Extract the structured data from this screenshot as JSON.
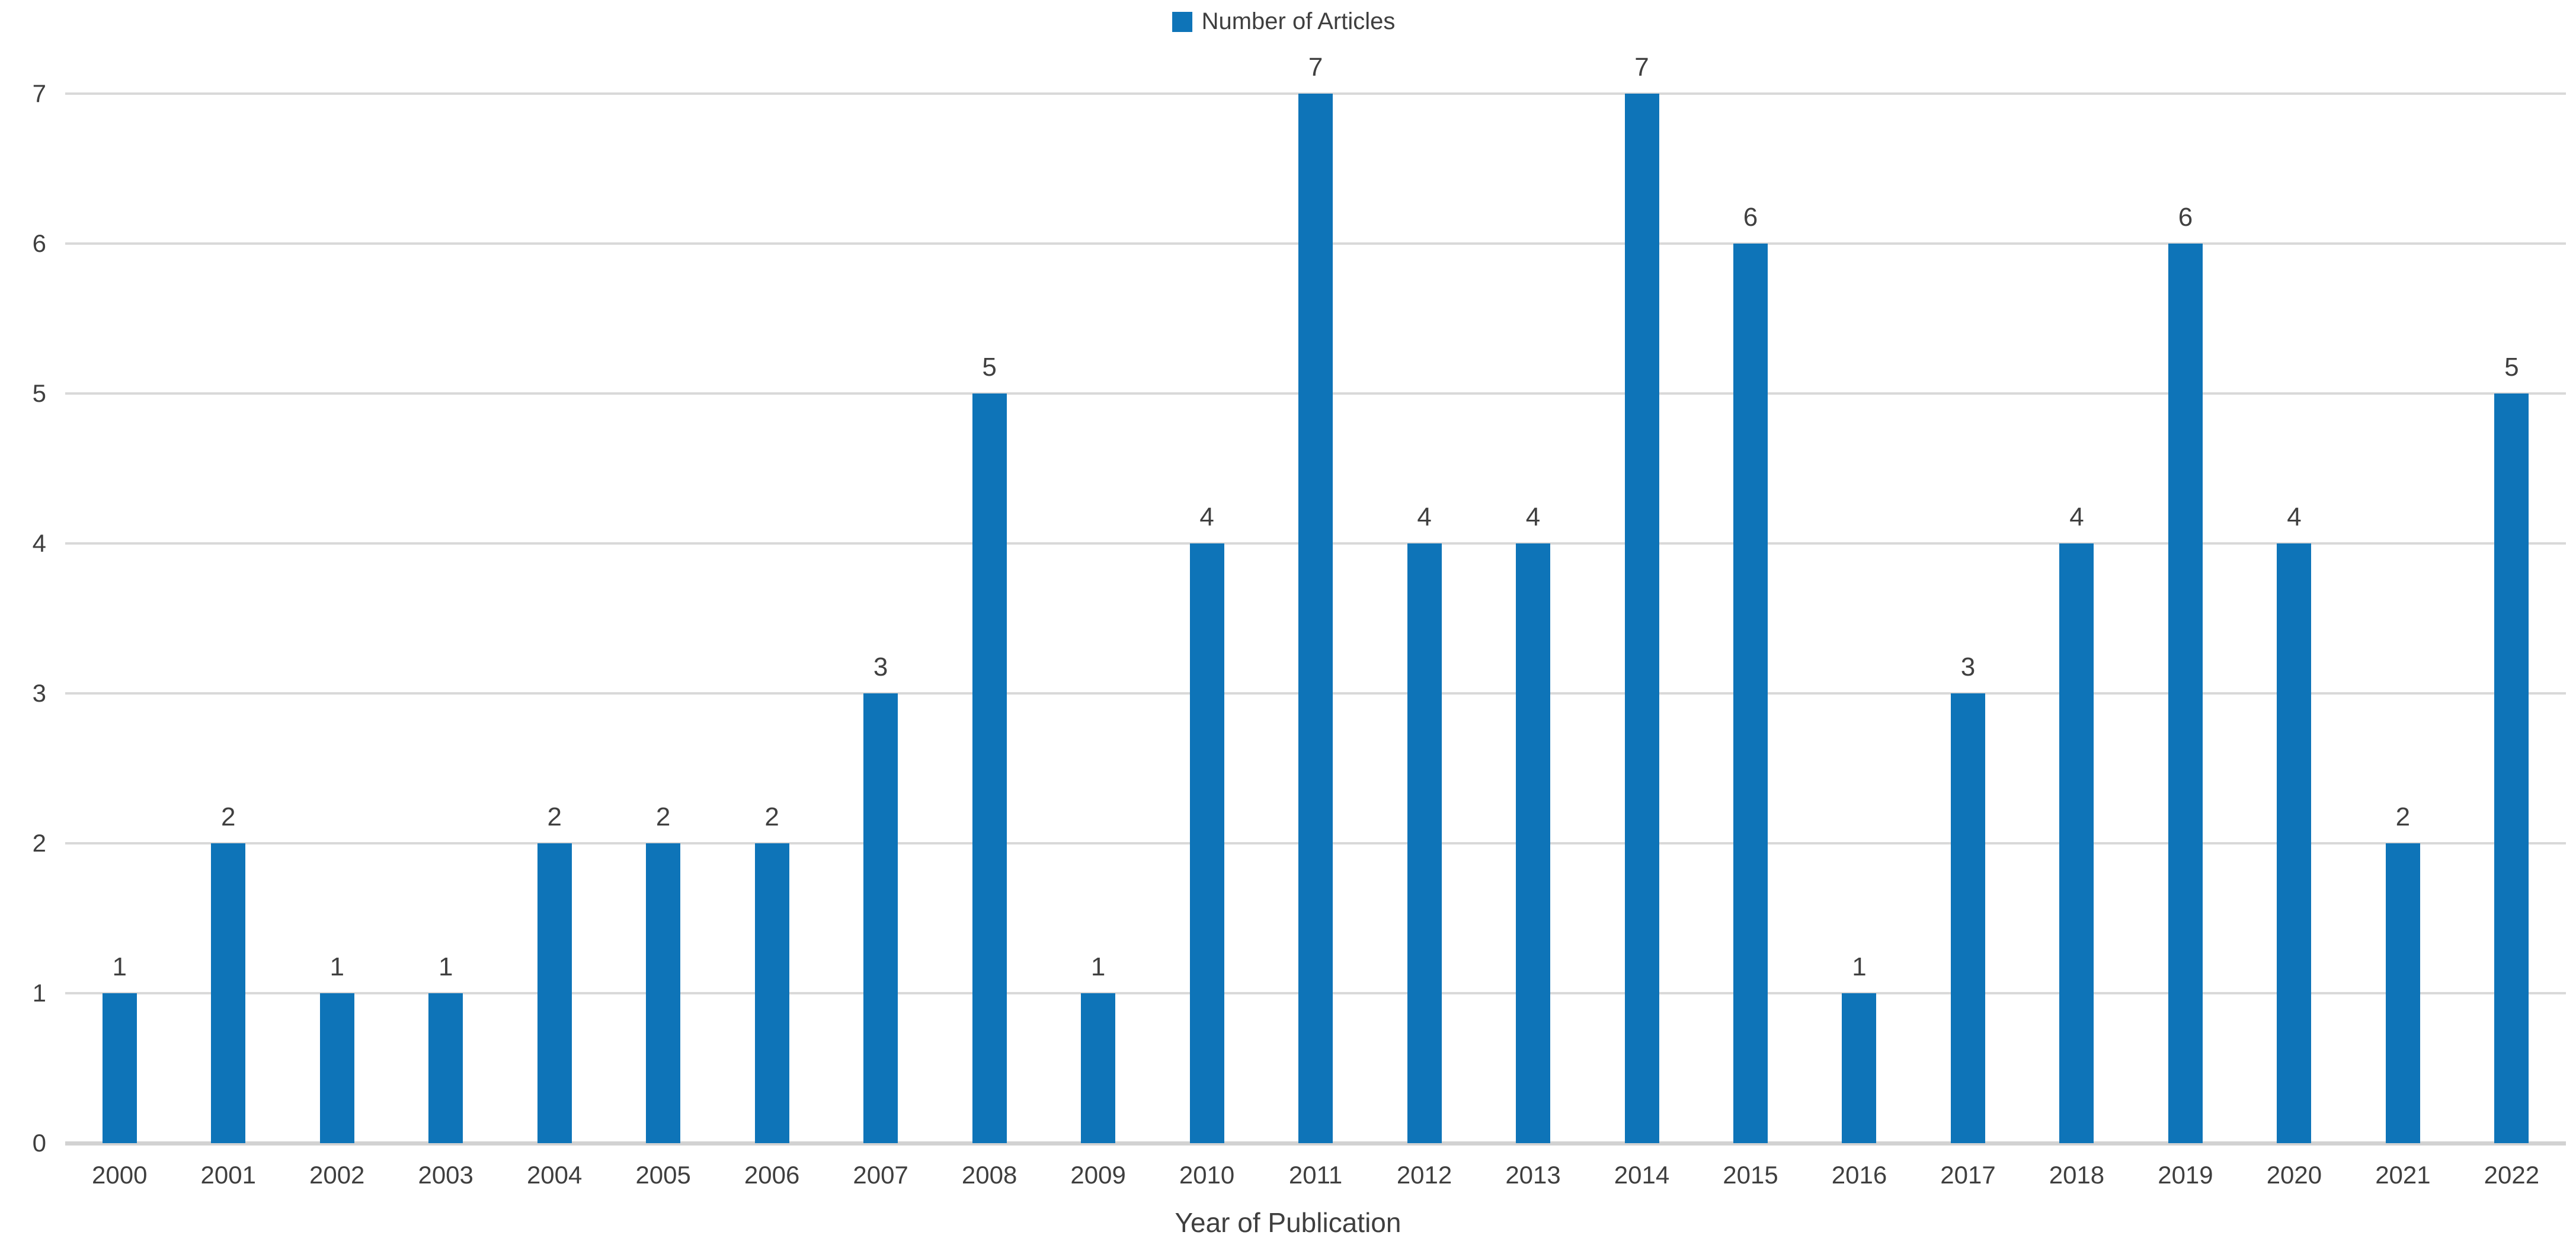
{
  "colors": {
    "bar": "#0e74b8",
    "gridline": "#d9d9d9",
    "baseline": "#d2d2d2",
    "text": "#3f3f3f"
  },
  "legend": {
    "label": "Number of Articles"
  },
  "chart_data": {
    "type": "bar",
    "title": "",
    "xlabel": "Year of Publication",
    "ylabel": "",
    "categories": [
      "2000",
      "2001",
      "2002",
      "2003",
      "2004",
      "2005",
      "2006",
      "2007",
      "2008",
      "2009",
      "2010",
      "2011",
      "2012",
      "2013",
      "2014",
      "2015",
      "2016",
      "2017",
      "2018",
      "2019",
      "2020",
      "2021",
      "2022"
    ],
    "values": [
      1,
      2,
      1,
      1,
      2,
      2,
      2,
      3,
      5,
      1,
      4,
      7,
      4,
      4,
      7,
      6,
      1,
      3,
      4,
      6,
      4,
      2,
      5
    ],
    "ylim": [
      0,
      7
    ],
    "yticks": [
      0,
      1,
      2,
      3,
      4,
      5,
      6,
      7
    ],
    "grid": "horizontal",
    "legend_position": "top-center",
    "data_labels": "above-bars",
    "series_name": "Number of Articles"
  }
}
